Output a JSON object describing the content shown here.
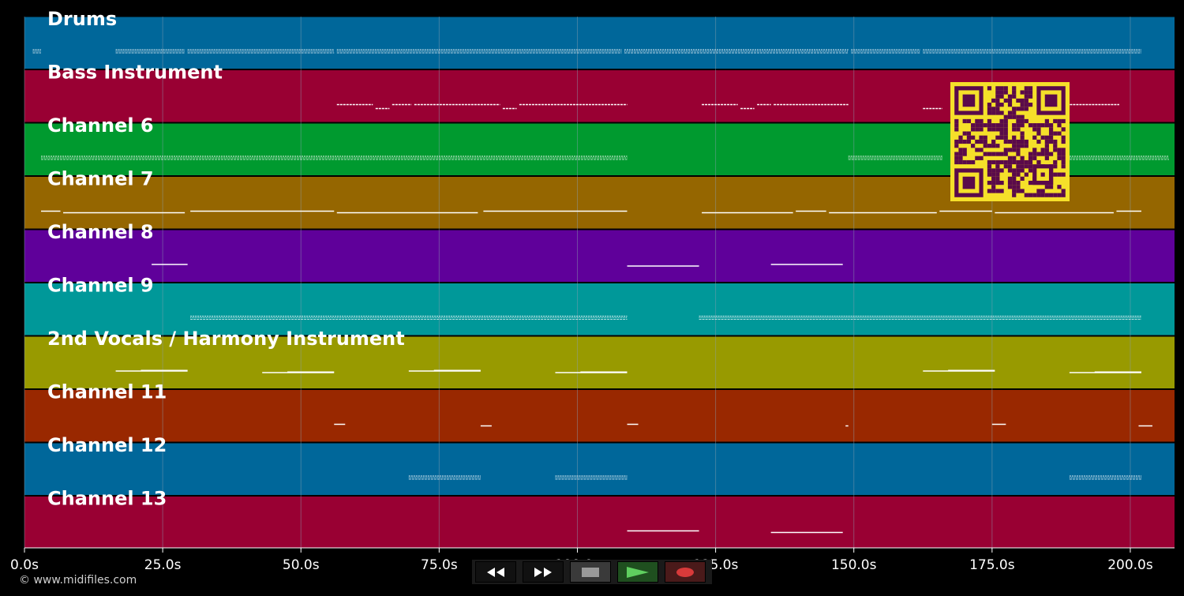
{
  "app": {
    "copyright": "© www.midifiles.com"
  },
  "colors": {
    "background": "#000000",
    "grid": "#8aa0b0",
    "note": "#ffffff",
    "qr_fg": "#5a0a4a",
    "qr_bg": "#f5e02a"
  },
  "timeline": {
    "max_seconds": 208,
    "ticks": [
      {
        "t": 0,
        "label": "0.0s"
      },
      {
        "t": 25,
        "label": "25.0s"
      },
      {
        "t": 50,
        "label": "50.0s"
      },
      {
        "t": 75,
        "label": "75.0s"
      },
      {
        "t": 100,
        "label": "100.0s"
      },
      {
        "t": 125,
        "label": "125.0s"
      },
      {
        "t": 150,
        "label": "150.0s"
      },
      {
        "t": 175,
        "label": "175.0s"
      },
      {
        "t": 200,
        "label": "200.0s"
      }
    ]
  },
  "tracks": [
    {
      "name": "Drums",
      "color": "#00679a",
      "style": "dense",
      "notes": [
        [
          1.5,
          3
        ],
        [
          16.5,
          29
        ],
        [
          29.5,
          56
        ],
        [
          56.5,
          108
        ],
        [
          108.5,
          149
        ],
        [
          149.5,
          162
        ],
        [
          162.5,
          202
        ]
      ]
    },
    {
      "name": "Bass Instrument",
      "color": "#990033",
      "style": "dashed",
      "notes": [
        [
          56.5,
          63
        ],
        [
          63.5,
          66
        ],
        [
          66.5,
          70
        ],
        [
          70.5,
          86
        ],
        [
          86.5,
          89
        ],
        [
          89.5,
          109
        ],
        [
          122.5,
          129
        ],
        [
          129.5,
          132
        ],
        [
          132.5,
          135
        ],
        [
          135.5,
          149
        ],
        [
          162.5,
          166
        ],
        [
          188.5,
          198
        ]
      ]
    },
    {
      "name": "Channel 6",
      "color": "#009a2f",
      "style": "dense",
      "notes": [
        [
          3,
          109
        ],
        [
          149,
          166
        ],
        [
          189,
          207
        ]
      ]
    },
    {
      "name": "Channel 7",
      "color": "#956600",
      "style": "line",
      "notes": [
        [
          3,
          6.5
        ],
        [
          7,
          29
        ],
        [
          30,
          56
        ],
        [
          56.5,
          82
        ],
        [
          83,
          109
        ],
        [
          122.5,
          139
        ],
        [
          139.5,
          145
        ],
        [
          145.5,
          165
        ],
        [
          165.5,
          175
        ],
        [
          175.5,
          197
        ],
        [
          197.5,
          202
        ]
      ]
    },
    {
      "name": "Channel 8",
      "color": "#5f009a",
      "style": "line",
      "notes": [
        [
          23,
          29.5
        ],
        [
          109,
          122
        ],
        [
          135,
          148
        ]
      ]
    },
    {
      "name": "Channel 9",
      "color": "#009899",
      "style": "dense",
      "notes": [
        [
          30,
          109
        ],
        [
          122,
          202
        ]
      ]
    },
    {
      "name": "2nd Vocals / Harmony Instrument",
      "color": "#989a00",
      "style": "line",
      "notes": [
        [
          16.5,
          29.5
        ],
        [
          43,
          56
        ],
        [
          69.5,
          82.5
        ],
        [
          96,
          109
        ],
        [
          162.5,
          175.5
        ],
        [
          189,
          202
        ]
      ]
    },
    {
      "name": "Channel 11",
      "color": "#992800",
      "style": "line",
      "notes": [
        [
          56,
          58
        ],
        [
          82.5,
          84.5
        ],
        [
          109,
          111
        ],
        [
          148.5,
          149
        ],
        [
          175,
          177.5
        ],
        [
          201.5,
          204
        ]
      ]
    },
    {
      "name": "Channel 12",
      "color": "#00679a",
      "style": "dense",
      "notes": [
        [
          69.5,
          82.5
        ],
        [
          96,
          109
        ],
        [
          189,
          202
        ]
      ]
    },
    {
      "name": "Channel 13",
      "color": "#990033",
      "style": "line",
      "notes": [
        [
          109,
          122
        ],
        [
          135,
          148
        ]
      ]
    }
  ],
  "transport": {
    "rewind": "rewind-icon",
    "fast_forward": "fast-forward-icon",
    "stop": "stop-icon",
    "play": "play-icon",
    "record": "record-icon"
  }
}
